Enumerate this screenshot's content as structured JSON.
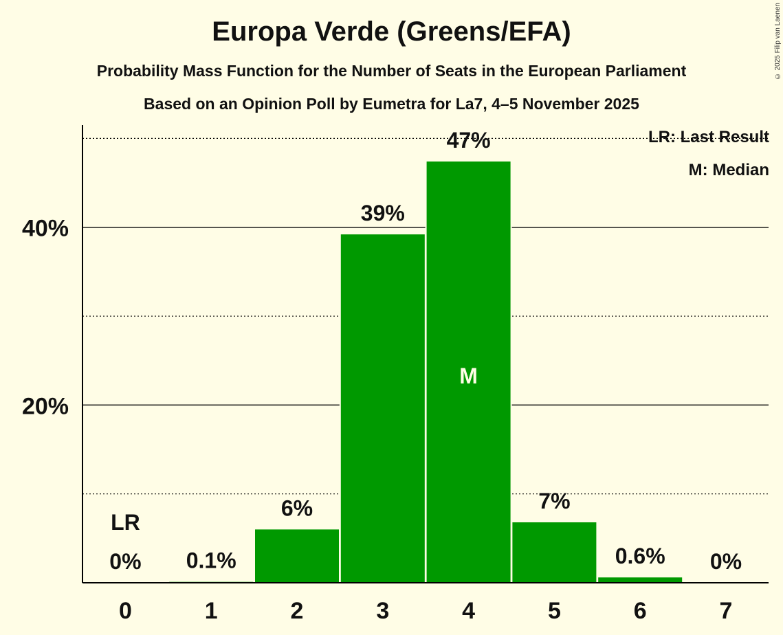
{
  "chart_data": {
    "type": "bar",
    "title": "Europa Verde (Greens/EFA)",
    "subtitle": "Probability Mass Function for the Number of Seats in the European Parliament",
    "subtitle2": "Based on an Opinion Poll by Eumetra for La7, 4–5 November 2025",
    "categories": [
      "0",
      "1",
      "2",
      "3",
      "4",
      "5",
      "6",
      "7"
    ],
    "values": [
      0,
      0.1,
      6,
      39.2,
      47.4,
      6.8,
      0.6,
      0
    ],
    "value_labels": [
      "0%",
      "0.1%",
      "6%",
      "39%",
      "47%",
      "7%",
      "0.6%",
      "0%"
    ],
    "y_ticks": [
      20,
      40
    ],
    "y_tick_labels": [
      "20%",
      "40%"
    ],
    "ylim": [
      0,
      51.5
    ],
    "last_result_index": 0,
    "last_result_marker": "LR",
    "median_index": 4,
    "median_marker": "M",
    "legend": [
      "LR: Last Result",
      "M: Median"
    ],
    "bar_color": "#009900",
    "xlabel": "",
    "ylabel": ""
  },
  "copyright": "© 2025 Filip van Laenen"
}
